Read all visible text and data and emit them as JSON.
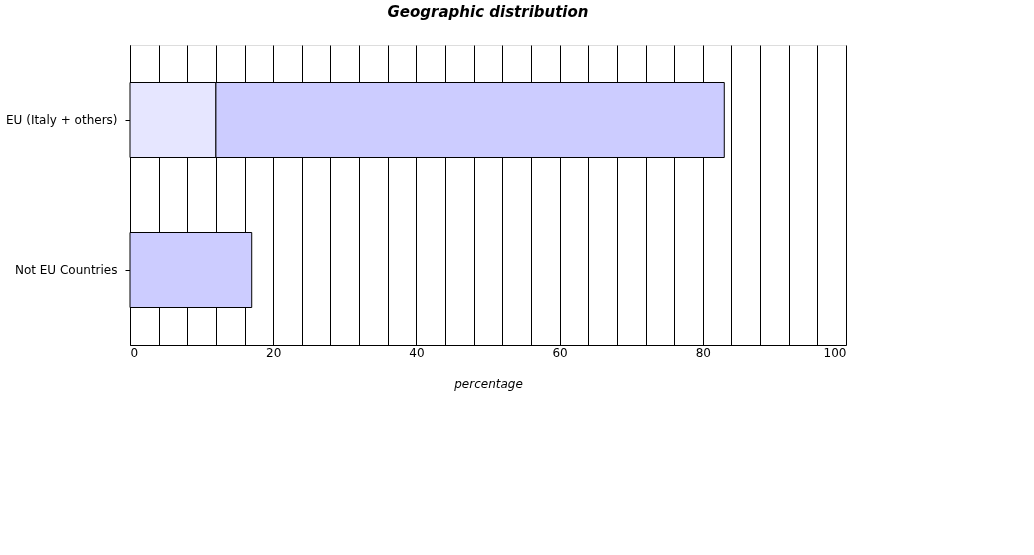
{
  "chart_data": {
    "type": "bar",
    "orientation": "horizontal",
    "stacked": true,
    "title": "Geographic distribution",
    "xlabel": "percentage",
    "categories": [
      "EU (Italy + others)",
      "Not EU Countries"
    ],
    "series": [
      {
        "color": "#e6e6ff",
        "values": [
          12,
          null
        ]
      },
      {
        "color": "#ccccff",
        "values": [
          71,
          17
        ]
      }
    ],
    "xlim": [
      0,
      100
    ],
    "xticks": [
      0,
      {
        "value": 4,
        "label": null
      },
      {
        "value": 8,
        "label": null
      },
      {
        "value": 12,
        "label": null
      },
      {
        "value": 16,
        "label": null
      },
      20,
      {
        "value": 24,
        "label": null
      },
      {
        "value": 28,
        "label": null
      },
      {
        "value": 32,
        "label": null
      },
      {
        "value": 36,
        "label": null
      },
      40,
      {
        "value": 44,
        "label": null
      },
      {
        "value": 48,
        "label": null
      },
      {
        "value": 52,
        "label": null
      },
      {
        "value": 56,
        "label": null
      },
      60,
      {
        "value": 64,
        "label": null
      },
      {
        "value": 68,
        "label": null
      },
      {
        "value": 72,
        "label": null
      },
      {
        "value": 76,
        "label": null
      },
      80,
      {
        "value": 84,
        "label": null
      },
      {
        "value": 88,
        "label": null
      },
      {
        "value": 92,
        "label": null
      },
      {
        "value": 96,
        "label": null
      },
      100
    ],
    "grid": "x",
    "legend": false
  }
}
